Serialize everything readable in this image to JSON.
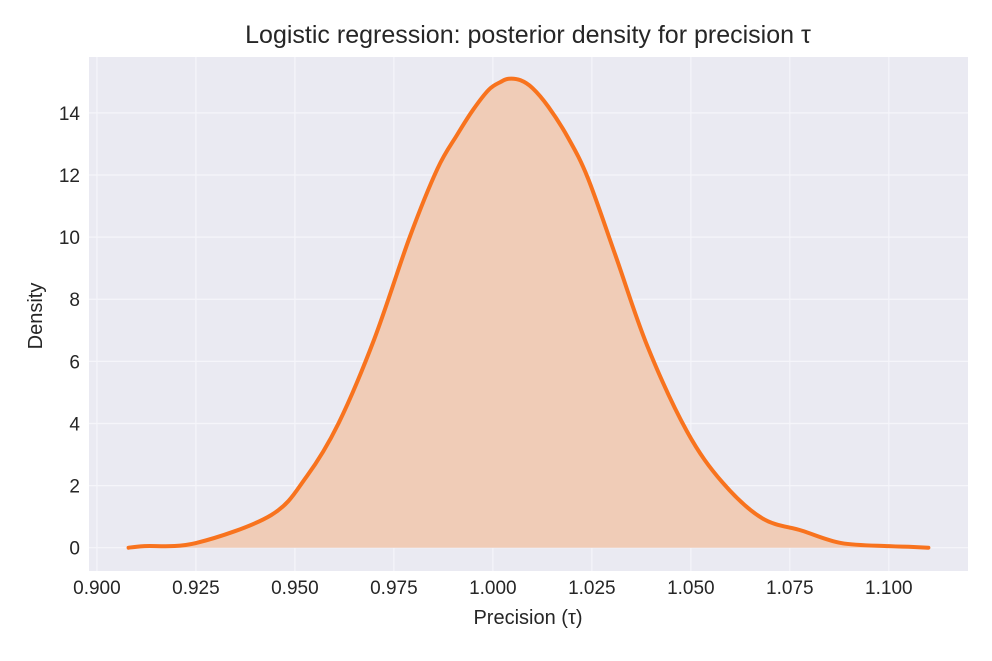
{
  "chart_data": {
    "type": "area",
    "title": "Logistic regression: posterior density for precision τ",
    "xlabel": "Precision (τ)",
    "ylabel": "Density",
    "xlim": [
      0.898,
      1.12
    ],
    "ylim": [
      -0.75,
      15.8
    ],
    "xticks": [
      0.9,
      0.925,
      0.95,
      0.975,
      1.0,
      1.025,
      1.05,
      1.075,
      1.1
    ],
    "xtick_labels": [
      "0.900",
      "0.925",
      "0.950",
      "0.975",
      "1.000",
      "1.025",
      "1.050",
      "1.075",
      "1.100"
    ],
    "yticks": [
      0,
      2,
      4,
      6,
      8,
      10,
      12,
      14
    ],
    "ytick_labels": [
      "0",
      "2",
      "4",
      "6",
      "8",
      "10",
      "12",
      "14"
    ],
    "grid": true,
    "series": [
      {
        "x": [
          0.908,
          0.912,
          0.925,
          0.944,
          0.953,
          0.961,
          0.97,
          0.979,
          0.986,
          0.991,
          0.995,
          0.999,
          1.002,
          1.004,
          1.007,
          1.01,
          1.014,
          1.019,
          1.024,
          1.031,
          1.039,
          1.049,
          1.058,
          1.068,
          1.078,
          1.088,
          1.1,
          1.105,
          1.11
        ],
        "y": [
          0.0,
          0.05,
          0.15,
          1.05,
          2.3,
          4.0,
          6.7,
          10.0,
          12.2,
          13.3,
          14.1,
          14.75,
          15.0,
          15.1,
          15.05,
          14.8,
          14.2,
          13.2,
          11.9,
          9.4,
          6.5,
          3.75,
          2.1,
          0.95,
          0.55,
          0.15,
          0.05,
          0.03,
          0.0
        ]
      }
    ],
    "colors": {
      "line": "#f8731e",
      "fill": "#f0ccb7",
      "plot_background": "#eaeaf2",
      "grid": "#f5f5fa"
    }
  }
}
